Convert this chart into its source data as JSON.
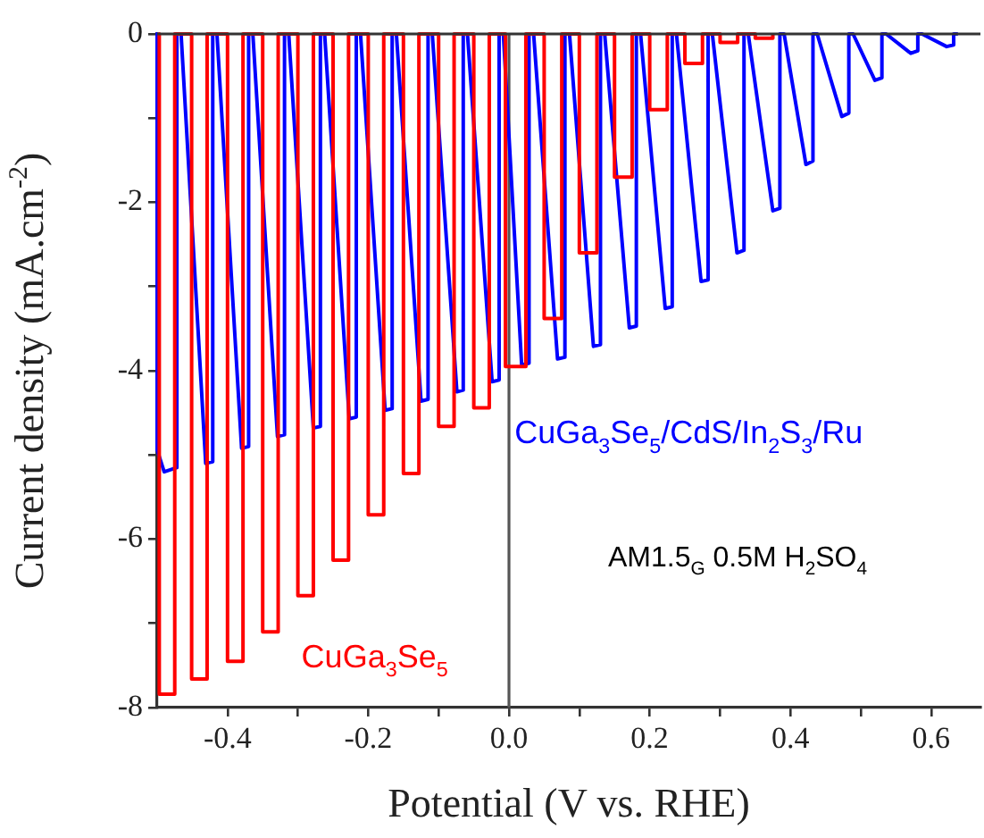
{
  "chart_data": {
    "type": "line",
    "xlabel": "Potential (V vs. RHE)",
    "ylabel": "Current density (mA.cm$^{-2}$)",
    "xlim": [
      -0.5,
      0.67
    ],
    "ylim": [
      -8,
      0
    ],
    "xticks": [
      -0.4,
      {
        "value": -0.3,
        "label": null
      },
      -0.2,
      {
        "value": -0.1,
        "label": null
      },
      {
        "value": 0,
        "label": "0.0"
      },
      {
        "value": 0.1,
        "label": null
      },
      0.2,
      {
        "value": 0.3,
        "label": null
      },
      0.4,
      {
        "value": 0.5,
        "label": null
      },
      0.6
    ],
    "yticks": [
      -8,
      {
        "value": -7,
        "label": null
      },
      -6,
      {
        "value": -5,
        "label": null
      },
      -4,
      {
        "value": -3,
        "label": null
      },
      -2,
      {
        "value": -1,
        "label": null
      },
      0
    ],
    "grid": false,
    "legend": false,
    "marker": "none",
    "line_style": "solid",
    "ref_lines": [
      {
        "axis": "x",
        "value": 0,
        "color": "#555555"
      }
    ],
    "annotations": [
      "AM1.5$_{G}$ 0.5M H$_{2}$SO$_{4}$"
    ],
    "series": [
      {
        "name": "CuGa$_{3}$Se$_{5}$",
        "color": "#ff0000",
        "x": [
          -0.497,
          -0.497,
          -0.475,
          -0.475,
          -0.451,
          -0.451,
          -0.429,
          -0.429,
          -0.4,
          -0.4,
          -0.378,
          -0.378,
          -0.35,
          -0.35,
          -0.328,
          -0.328,
          -0.3,
          -0.3,
          -0.278,
          -0.278,
          -0.25,
          -0.25,
          -0.228,
          -0.228,
          -0.2,
          -0.2,
          -0.178,
          -0.178,
          -0.15,
          -0.15,
          -0.128,
          -0.128,
          -0.1,
          -0.1,
          -0.078,
          -0.078,
          -0.05,
          -0.05,
          -0.028,
          -0.028,
          -0.005,
          -0.005,
          0.024,
          0.024,
          0.05,
          0.05,
          0.075,
          0.075,
          0.1,
          0.1,
          0.125,
          0.125,
          0.15,
          0.15,
          0.175,
          0.175,
          0.2,
          0.2,
          0.225,
          0.225,
          0.25,
          0.25,
          0.275,
          0.275,
          0.3,
          0.3,
          0.325,
          0.325,
          0.35,
          0.35,
          0.375,
          0.375
        ],
        "values": [
          0,
          -7.84,
          -7.84,
          0,
          0,
          -7.66,
          -7.66,
          0,
          0,
          -7.45,
          -7.45,
          0,
          0,
          -7.1,
          -7.1,
          0,
          0,
          -6.67,
          -6.67,
          0,
          0,
          -6.25,
          -6.25,
          0,
          0,
          -5.71,
          -5.71,
          0,
          0,
          -5.22,
          -5.22,
          0,
          0,
          -4.66,
          -4.66,
          0,
          0,
          -4.44,
          -4.44,
          0,
          0,
          -3.95,
          -3.95,
          0,
          0,
          -3.38,
          -3.38,
          0,
          0,
          -2.6,
          -2.6,
          0,
          0,
          -1.7,
          -1.7,
          0,
          0,
          -0.9,
          -0.9,
          0,
          0,
          -0.35,
          -0.35,
          0,
          0,
          -0.1,
          -0.1,
          0,
          0,
          -0.05,
          -0.05,
          0
        ]
      },
      {
        "name": "CuGa$_{3}$Se$_{5}$/CdS/In$_{2}$S$_{3}$/Ru",
        "color": "#0000ff",
        "x": [
          -0.5,
          -0.5,
          -0.49,
          -0.472,
          -0.472,
          -0.466,
          -0.431,
          -0.421,
          -0.421,
          -0.415,
          -0.38,
          -0.37,
          -0.37,
          -0.364,
          -0.329,
          -0.319,
          -0.319,
          -0.313,
          -0.278,
          -0.268,
          -0.268,
          -0.262,
          -0.227,
          -0.217,
          -0.217,
          -0.211,
          -0.176,
          -0.166,
          -0.166,
          -0.16,
          -0.125,
          -0.115,
          -0.115,
          -0.109,
          -0.074,
          -0.065,
          -0.065,
          -0.059,
          -0.024,
          -0.014,
          -0.014,
          -0.008,
          0.018,
          0.0285,
          0.0285,
          0.035,
          0.069,
          0.0795,
          0.0795,
          0.086,
          0.12,
          0.13,
          0.13,
          0.136,
          0.171,
          0.181,
          0.181,
          0.187,
          0.222,
          0.232,
          0.232,
          0.238,
          0.273,
          0.283,
          0.283,
          0.289,
          0.324,
          0.334,
          0.334,
          0.34,
          0.375,
          0.385,
          0.385,
          0.391,
          0.422,
          0.432,
          0.432,
          0.438,
          0.473,
          0.483,
          0.483,
          0.489,
          0.52,
          0.53,
          0.53,
          0.536,
          0.571,
          0.581,
          0.581,
          0.587,
          0.622,
          0.632,
          0.632,
          0.638
        ],
        "values": [
          0,
          -4.94,
          -5.2,
          -5.15,
          0,
          0,
          -5.1,
          -5.08,
          0,
          0,
          -4.92,
          -4.9,
          0,
          0,
          -4.78,
          -4.76,
          0,
          0,
          -4.68,
          -4.66,
          0,
          0,
          -4.57,
          -4.55,
          0,
          0,
          -4.47,
          -4.45,
          0,
          0,
          -4.36,
          -4.34,
          0,
          0,
          -4.25,
          -4.23,
          0,
          0,
          -4.13,
          -4.11,
          0,
          0,
          -3.93,
          -3.91,
          0,
          0,
          -3.86,
          -3.84,
          0,
          0,
          -3.71,
          -3.69,
          0,
          0,
          -3.49,
          -3.47,
          0,
          0,
          -3.26,
          -3.24,
          0,
          0,
          -2.94,
          -2.92,
          0,
          0,
          -2.6,
          -2.57,
          0,
          0,
          -2.1,
          -2.07,
          0,
          0,
          -1.55,
          -1.51,
          0,
          0,
          -0.98,
          -0.94,
          0,
          0,
          -0.55,
          -0.52,
          0,
          0,
          -0.23,
          -0.2,
          0,
          0,
          -0.15,
          -0.13,
          0,
          0
        ]
      }
    ]
  }
}
